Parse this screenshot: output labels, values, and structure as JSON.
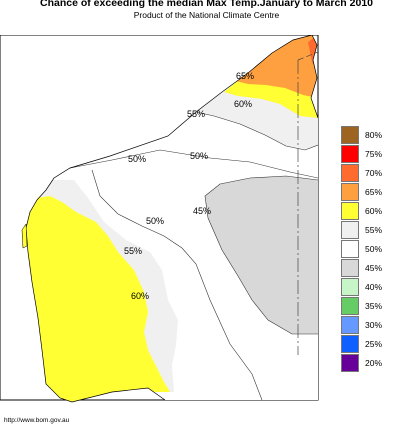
{
  "header": {
    "title": "Chance of exceeding the median Max Temp.January to March 2010",
    "subtitle": "Product of the National Climate Centre"
  },
  "footer": {
    "credit": "http://www.bom.gov.au"
  },
  "map_labels": [
    "65%",
    "60%",
    "55%",
    "50%",
    "50%",
    "50%",
    "45%",
    "55%",
    "60%"
  ],
  "legend": [
    {
      "label": "80%",
      "color": "#9c6420"
    },
    {
      "label": "75%",
      "color": "#ff0000"
    },
    {
      "label": "70%",
      "color": "#ff6a2e"
    },
    {
      "label": "65%",
      "color": "#ffa040"
    },
    {
      "label": "60%",
      "color": "#ffff33"
    },
    {
      "label": "55%",
      "color": "#f0f0f0"
    },
    {
      "label": "50%",
      "color": "#ffffff"
    },
    {
      "label": "45%",
      "color": "#d8d8d8"
    },
    {
      "label": "40%",
      "color": "#c8f5c8"
    },
    {
      "label": "35%",
      "color": "#66cc66"
    },
    {
      "label": "30%",
      "color": "#6699ff"
    },
    {
      "label": "25%",
      "color": "#1060ff"
    },
    {
      "label": "20%",
      "color": "#660099"
    }
  ],
  "colors": {
    "ocean": "#ffffff",
    "land_base": "#ffffff",
    "yellow_60": "#ffff33",
    "orange_65": "#ffa040",
    "grey_55": "#f0f0f0",
    "grey_45": "#d8d8d8"
  }
}
